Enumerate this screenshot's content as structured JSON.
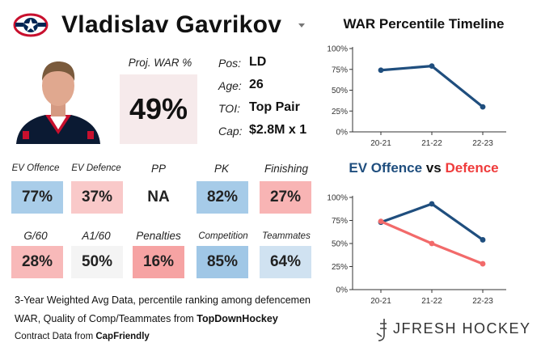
{
  "header": {
    "player_name": "Vladislav Gavrikov",
    "team_logo_icon": "blue-jackets-logo-icon",
    "dropdown_icon": "chevron-down-icon"
  },
  "projected_war": {
    "label": "Proj. WAR %",
    "value": "49%",
    "bg": "#f6eaeb"
  },
  "info": {
    "pos_label": "Pos:",
    "pos": "LD",
    "age_label": "Age:",
    "age": "26",
    "toi_label": "TOI:",
    "toi": "Top Pair",
    "cap_label": "Cap:",
    "cap": "$2.8M x 1"
  },
  "stats": [
    {
      "label": "EV Offence",
      "value": "77%",
      "color": "#a9cde9",
      "small": true
    },
    {
      "label": "EV Defence",
      "value": "37%",
      "color": "#f9c9c9",
      "small": true
    },
    {
      "label": "PP",
      "value": "NA",
      "color": "#ffffff",
      "small": false
    },
    {
      "label": "PK",
      "value": "82%",
      "color": "#a6cbe8",
      "small": false
    },
    {
      "label": "Finishing",
      "value": "27%",
      "color": "#f8b4b4",
      "small": false
    },
    {
      "label": "G/60",
      "value": "28%",
      "color": "#f8b9b9",
      "small": false
    },
    {
      "label": "A1/60",
      "value": "50%",
      "color": "#f4f4f4",
      "small": false
    },
    {
      "label": "Penalties",
      "value": "16%",
      "color": "#f6a3a3",
      "small": false
    },
    {
      "label": "Competition",
      "value": "85%",
      "color": "#a0c7e6",
      "small": true
    },
    {
      "label": "Teammates",
      "value": "64%",
      "color": "#d0e2f1",
      "small": true
    }
  ],
  "footer": {
    "line1": "3-Year Weighted Avg Data, percentile ranking among defencemen",
    "line2_pre": "WAR, Quality of Comp/Teammates from ",
    "line2_bold": "TopDownHockey",
    "line3_pre": "Contract Data from ",
    "line3_bold": "CapFriendly"
  },
  "brand": {
    "mark": "J",
    "text": "JFRESH HOCKEY"
  },
  "chart_data": [
    {
      "type": "line",
      "title": "WAR Percentile Timeline",
      "categories": [
        "20-21",
        "21-22",
        "22-23"
      ],
      "yticks": [
        "0%",
        "25%",
        "50%",
        "75%",
        "100%"
      ],
      "ylim": [
        0,
        100
      ],
      "series": [
        {
          "values": [
            74,
            79,
            30
          ],
          "color": "#1f4e7e"
        }
      ]
    },
    {
      "type": "line",
      "title_parts": {
        "offence": "EV Offence",
        "vs": "vs",
        "defence": "Defence"
      },
      "title_colors": {
        "offence": "#1f4e7e",
        "defence": "#ef3b3b"
      },
      "categories": [
        "20-21",
        "21-22",
        "22-23"
      ],
      "yticks": [
        "0%",
        "25%",
        "50%",
        "75%",
        "100%"
      ],
      "ylim": [
        0,
        100
      ],
      "series": [
        {
          "values": [
            73,
            93,
            54
          ],
          "color": "#1f4e7e"
        },
        {
          "values": [
            74,
            50,
            28
          ],
          "color": "#f26a6a"
        }
      ]
    }
  ]
}
